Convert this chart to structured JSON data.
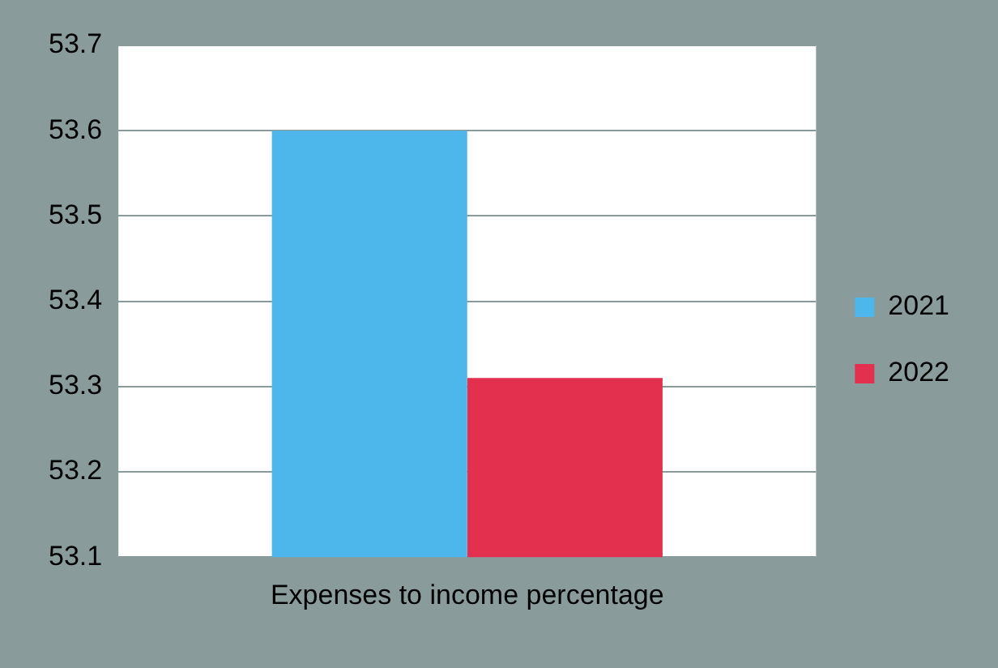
{
  "chart_data": {
    "type": "bar",
    "categories": [
      "Expenses to income percentage"
    ],
    "series": [
      {
        "name": "2021",
        "color": "#4db6ea",
        "values": [
          53.6
        ]
      },
      {
        "name": "2022",
        "color": "#e2304e",
        "values": [
          53.31
        ]
      }
    ],
    "ylim": [
      53.1,
      53.7
    ],
    "yticks": [
      53.1,
      53.2,
      53.3,
      53.4,
      53.5,
      53.6,
      53.7
    ],
    "grid": "y",
    "legend": "right"
  }
}
